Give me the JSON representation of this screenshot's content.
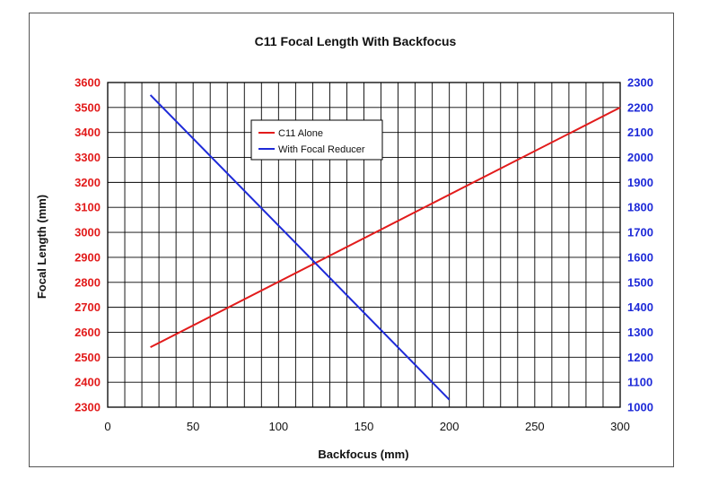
{
  "chart_data": {
    "type": "line",
    "title": "C11 Focal Length With Backfocus",
    "xlabel": "Backfocus (mm)",
    "ylabel": "Focal Length (mm)",
    "xlim": [
      0,
      300
    ],
    "ylim": [
      2300,
      3600
    ],
    "y2lim": [
      1000,
      2300
    ],
    "x_ticks": [
      "0",
      "50",
      "100",
      "150",
      "200",
      "250",
      "300"
    ],
    "y_ticks": [
      "2300",
      "2400",
      "2500",
      "2600",
      "2700",
      "2800",
      "2900",
      "3000",
      "3100",
      "3200",
      "3300",
      "3400",
      "3500",
      "3600"
    ],
    "y2_ticks": [
      "1000",
      "1100",
      "1200",
      "1300",
      "1400",
      "1500",
      "1600",
      "1700",
      "1800",
      "1900",
      "2000",
      "2100",
      "2200",
      "2300"
    ],
    "grid": true,
    "legend_position": "upper-left-inside",
    "series": [
      {
        "name": "C11 Alone",
        "color": "#e21b1b",
        "axis": "left",
        "x": [
          25,
          300
        ],
        "y": [
          2540,
          3500
        ]
      },
      {
        "name": "With Focal Reducer",
        "color": "#1e2ad8",
        "axis": "right",
        "x": [
          25,
          200
        ],
        "y": [
          2250,
          1030
        ]
      }
    ]
  }
}
